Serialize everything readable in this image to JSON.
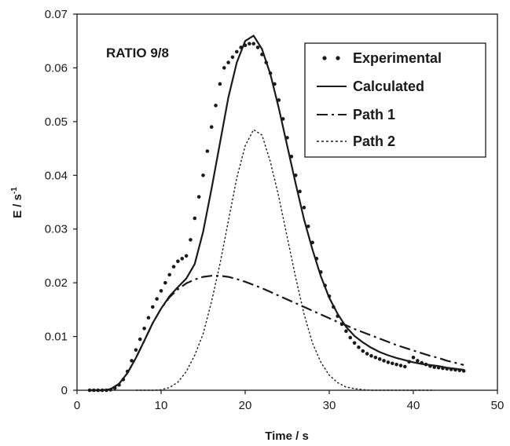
{
  "chart_data": {
    "type": "line",
    "annotation": "RATIO 9/8",
    "xlabel": "Time / s",
    "ylabel": "E / s",
    "ylabel_sup": "-1",
    "xlim": [
      0,
      50
    ],
    "ylim": [
      0,
      0.07
    ],
    "xticks": [
      "0",
      "10",
      "20",
      "30",
      "40",
      "50"
    ],
    "yticks": [
      "0",
      "0.01",
      "0.02",
      "0.03",
      "0.04",
      "0.05",
      "0.06",
      "0.07"
    ],
    "grid": false,
    "legend_position": "top-right",
    "series": [
      {
        "name": "Experimental",
        "style": "dots",
        "x": [
          1.5,
          2,
          2.5,
          3,
          3.5,
          4,
          4.5,
          5,
          5.5,
          6,
          6.5,
          7,
          7.5,
          8,
          8.5,
          9,
          9.5,
          10,
          10.5,
          11,
          11.5,
          12,
          12.5,
          13,
          13.5,
          14,
          14.5,
          15,
          15.5,
          16,
          16.5,
          17,
          17.5,
          18,
          18.5,
          19,
          19.5,
          20,
          20.5,
          21,
          21.5,
          22,
          22.5,
          23,
          23.5,
          24,
          24.5,
          25,
          25.5,
          26,
          26.5,
          27,
          27.5,
          28,
          28.5,
          29,
          29.5,
          30,
          30.5,
          31,
          31.5,
          32,
          32.5,
          33,
          33.5,
          34,
          34.5,
          35,
          35.5,
          36,
          36.5,
          37,
          37.5,
          38,
          38.5,
          39,
          39.5,
          40,
          40.5,
          41,
          41.5,
          42,
          42.5,
          43,
          43.5,
          44,
          44.5,
          45,
          45.5,
          46
        ],
        "y": [
          0,
          0,
          0,
          0,
          0,
          0.0001,
          0.0004,
          0.001,
          0.002,
          0.0035,
          0.0055,
          0.0075,
          0.0095,
          0.0115,
          0.0135,
          0.0155,
          0.017,
          0.0185,
          0.02,
          0.0215,
          0.023,
          0.024,
          0.0245,
          0.025,
          0.028,
          0.032,
          0.036,
          0.04,
          0.0445,
          0.049,
          0.053,
          0.057,
          0.06,
          0.061,
          0.062,
          0.063,
          0.0638,
          0.0642,
          0.0645,
          0.0645,
          0.0638,
          0.0625,
          0.061,
          0.059,
          0.057,
          0.054,
          0.0505,
          0.047,
          0.0435,
          0.04,
          0.037,
          0.034,
          0.0305,
          0.0275,
          0.0245,
          0.022,
          0.0195,
          0.0175,
          0.0155,
          0.0138,
          0.0123,
          0.011,
          0.0098,
          0.0088,
          0.008,
          0.0073,
          0.0068,
          0.0064,
          0.0061,
          0.0058,
          0.0055,
          0.0052,
          0.005,
          0.0048,
          0.0046,
          0.0044,
          0.0053,
          0.0061,
          0.0055,
          0.0051,
          0.0048,
          0.0045,
          0.0043,
          0.0042,
          0.0041,
          0.004,
          0.0039,
          0.0038,
          0.0037,
          0.0036
        ]
      },
      {
        "name": "Calculated",
        "style": "solid",
        "x": [
          1.5,
          3,
          4,
          5,
          6,
          7,
          8,
          9,
          10,
          11,
          12,
          13,
          14,
          15,
          16,
          17,
          18,
          19,
          20,
          21,
          22,
          23,
          24,
          25,
          26,
          27,
          28,
          29,
          30,
          31,
          32,
          33,
          34,
          35,
          36,
          37,
          38,
          39,
          40,
          41,
          42,
          43,
          44,
          45,
          46
        ],
        "y": [
          0,
          0,
          0.0002,
          0.0012,
          0.0032,
          0.006,
          0.0092,
          0.0125,
          0.0152,
          0.0175,
          0.0192,
          0.0208,
          0.0235,
          0.0295,
          0.0375,
          0.046,
          0.0545,
          0.061,
          0.065,
          0.066,
          0.0635,
          0.0588,
          0.0525,
          0.0455,
          0.0385,
          0.0318,
          0.0262,
          0.0212,
          0.0172,
          0.0142,
          0.0118,
          0.0101,
          0.0089,
          0.0079,
          0.0071,
          0.0065,
          0.006,
          0.0056,
          0.0052,
          0.0049,
          0.0047,
          0.0045,
          0.0042,
          0.004,
          0.0038
        ]
      },
      {
        "name": "Path 1",
        "style": "dashdot",
        "x": [
          1.5,
          3,
          4,
          5,
          6,
          7,
          8,
          9,
          10,
          11,
          12,
          13,
          14,
          15,
          16,
          17,
          18,
          19,
          20,
          21,
          22,
          23,
          24,
          25,
          26,
          27,
          28,
          29,
          30,
          31,
          32,
          33,
          34,
          35,
          36,
          37,
          38,
          39,
          40,
          41,
          42,
          43,
          44,
          45,
          46
        ],
        "y": [
          0,
          0,
          0.0002,
          0.0012,
          0.0032,
          0.006,
          0.0092,
          0.0125,
          0.0152,
          0.0173,
          0.0188,
          0.0199,
          0.0206,
          0.0211,
          0.0213,
          0.0213,
          0.0211,
          0.0207,
          0.0202,
          0.0196,
          0.019,
          0.0183,
          0.0176,
          0.0169,
          0.0162,
          0.0155,
          0.0148,
          0.0141,
          0.0134,
          0.0127,
          0.0121,
          0.0114,
          0.0108,
          0.0102,
          0.0096,
          0.009,
          0.0084,
          0.0079,
          0.0074,
          0.0069,
          0.0064,
          0.006,
          0.0055,
          0.0051,
          0.0047
        ]
      },
      {
        "name": "Path 2",
        "style": "dotted",
        "x": [
          7,
          9,
          10,
          11,
          12,
          13,
          14,
          15,
          16,
          17,
          18,
          19,
          20,
          21,
          22,
          23,
          24,
          25,
          26,
          27,
          28,
          29,
          30,
          31,
          32,
          33,
          34,
          35,
          36,
          37,
          38,
          40,
          42.5
        ],
        "y": [
          0,
          0,
          0.0001,
          0.0005,
          0.0015,
          0.0035,
          0.0065,
          0.0105,
          0.0165,
          0.0235,
          0.0315,
          0.0395,
          0.0455,
          0.0485,
          0.0475,
          0.0425,
          0.036,
          0.0285,
          0.021,
          0.0142,
          0.0088,
          0.0052,
          0.0028,
          0.0014,
          0.0006,
          0.0003,
          0.0001,
          0,
          0,
          0,
          0,
          0,
          0
        ]
      }
    ]
  }
}
